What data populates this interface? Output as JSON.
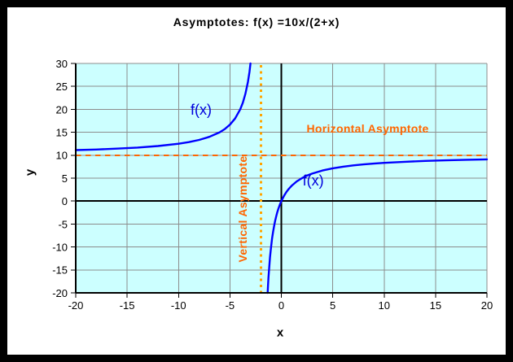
{
  "window": {
    "border_color": "#000000",
    "background": "#FFFFFF"
  },
  "chart_data": {
    "type": "line",
    "title": "Asymptotes: f(x) =10x/(2+x)",
    "xlabel": "x",
    "ylabel": "y",
    "function": "f(x) = 10x/(2+x)",
    "xlim": [
      -20,
      20
    ],
    "ylim": [
      -20,
      30
    ],
    "x_ticks": [
      -20,
      -15,
      -10,
      -5,
      0,
      5,
      10,
      15,
      20
    ],
    "y_ticks": [
      30,
      25,
      20,
      15,
      10,
      5,
      0,
      -5,
      -10,
      -15,
      -20
    ],
    "grid": true,
    "legend": "none",
    "plot_background": "#CCFFFF",
    "grid_color": "#8C8C8C",
    "axis_color": "#000000",
    "series": [
      {
        "name": "f(x) left branch",
        "color": "#0000FF",
        "points": [
          [
            -20,
            11.11
          ],
          [
            -18,
            11.25
          ],
          [
            -16,
            11.43
          ],
          [
            -14,
            11.67
          ],
          [
            -12,
            12
          ],
          [
            -10,
            12.5
          ],
          [
            -9,
            12.86
          ],
          [
            -8,
            13.33
          ],
          [
            -7,
            14
          ],
          [
            -6,
            15
          ],
          [
            -5.5,
            15.71
          ],
          [
            -5,
            16.67
          ],
          [
            -4.5,
            18
          ],
          [
            -4,
            20
          ],
          [
            -3.75,
            21.43
          ],
          [
            -3.5,
            23.33
          ],
          [
            -3.25,
            26
          ],
          [
            -3.1,
            28.18
          ],
          [
            -3,
            30
          ]
        ]
      },
      {
        "name": "f(x) right branch",
        "color": "#0000FF",
        "points": [
          [
            -1.33,
            -20
          ],
          [
            -1.3,
            -18.57
          ],
          [
            -1.25,
            -16.67
          ],
          [
            -1.2,
            -15
          ],
          [
            -1.1,
            -12.22
          ],
          [
            -1,
            -10
          ],
          [
            -0.9,
            -8.18
          ],
          [
            -0.8,
            -6.67
          ],
          [
            -0.7,
            -5.38
          ],
          [
            -0.6,
            -4.29
          ],
          [
            -0.5,
            -3.33
          ],
          [
            -0.4,
            -2.5
          ],
          [
            -0.3,
            -1.76
          ],
          [
            -0.2,
            -1.11
          ],
          [
            -0.1,
            -0.53
          ],
          [
            0,
            0
          ],
          [
            0.25,
            1.11
          ],
          [
            0.5,
            2
          ],
          [
            0.75,
            2.73
          ],
          [
            1,
            3.33
          ],
          [
            1.5,
            4.29
          ],
          [
            2,
            5
          ],
          [
            2.5,
            5.56
          ],
          [
            3,
            6
          ],
          [
            4,
            6.67
          ],
          [
            5,
            7.14
          ],
          [
            6,
            7.5
          ],
          [
            7,
            7.78
          ],
          [
            8,
            8
          ],
          [
            9,
            8.18
          ],
          [
            10,
            8.33
          ],
          [
            12,
            8.57
          ],
          [
            14,
            8.75
          ],
          [
            16,
            8.89
          ],
          [
            18,
            9
          ],
          [
            20,
            9.09
          ]
        ]
      }
    ],
    "asymptotes": [
      {
        "orientation": "horizontal",
        "value": 10,
        "style": "dashed",
        "color": "#FF6600",
        "label": "Horizontal Asymptote",
        "label_color": "#FF6600",
        "label_at": [
          8.4,
          15.8
        ]
      },
      {
        "orientation": "vertical",
        "value": -2,
        "style": "dotted",
        "color": "#FFA500",
        "label": "Vertical Asymptote",
        "label_color": "#FF6600",
        "label_at": [
          -3.76,
          -1.74
        ]
      }
    ],
    "curve_labels": [
      {
        "text": "f(x)",
        "at": [
          -7.8,
          19.9
        ],
        "color": "#0000DD"
      },
      {
        "text": "f(x)",
        "at": [
          3.1,
          4.5
        ],
        "color": "#0000DD"
      }
    ]
  }
}
